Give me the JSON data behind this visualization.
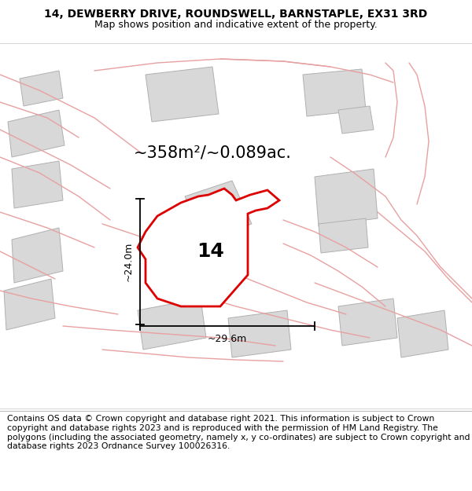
{
  "title_line1": "14, DEWBERRY DRIVE, ROUNDSWELL, BARNSTAPLE, EX31 3RD",
  "title_line2": "Map shows position and indicative extent of the property.",
  "footer_text": "Contains OS data © Crown copyright and database right 2021. This information is subject to Crown copyright and database rights 2023 and is reproduced with the permission of HM Land Registry. The polygons (including the associated geometry, namely x, y co-ordinates) are subject to Crown copyright and database rights 2023 Ordnance Survey 100026316.",
  "area_label": "~358m²/~0.089ac.",
  "width_label": "~29.6m",
  "height_label": "~24.0m",
  "plot_number": "14",
  "bg_color": "#f2f2f2",
  "map_bg": "#ffffff",
  "plot_outline": "#dd0000",
  "building_fill": "#d8d8d8",
  "building_outline": "#b0b0b0",
  "road_color": "#e8a0a0",
  "title_fontsize": 10,
  "subtitle_fontsize": 9,
  "footer_fontsize": 7.8,
  "area_fontsize": 15,
  "dim_fontsize": 9,
  "plot_number_fontsize": 18
}
